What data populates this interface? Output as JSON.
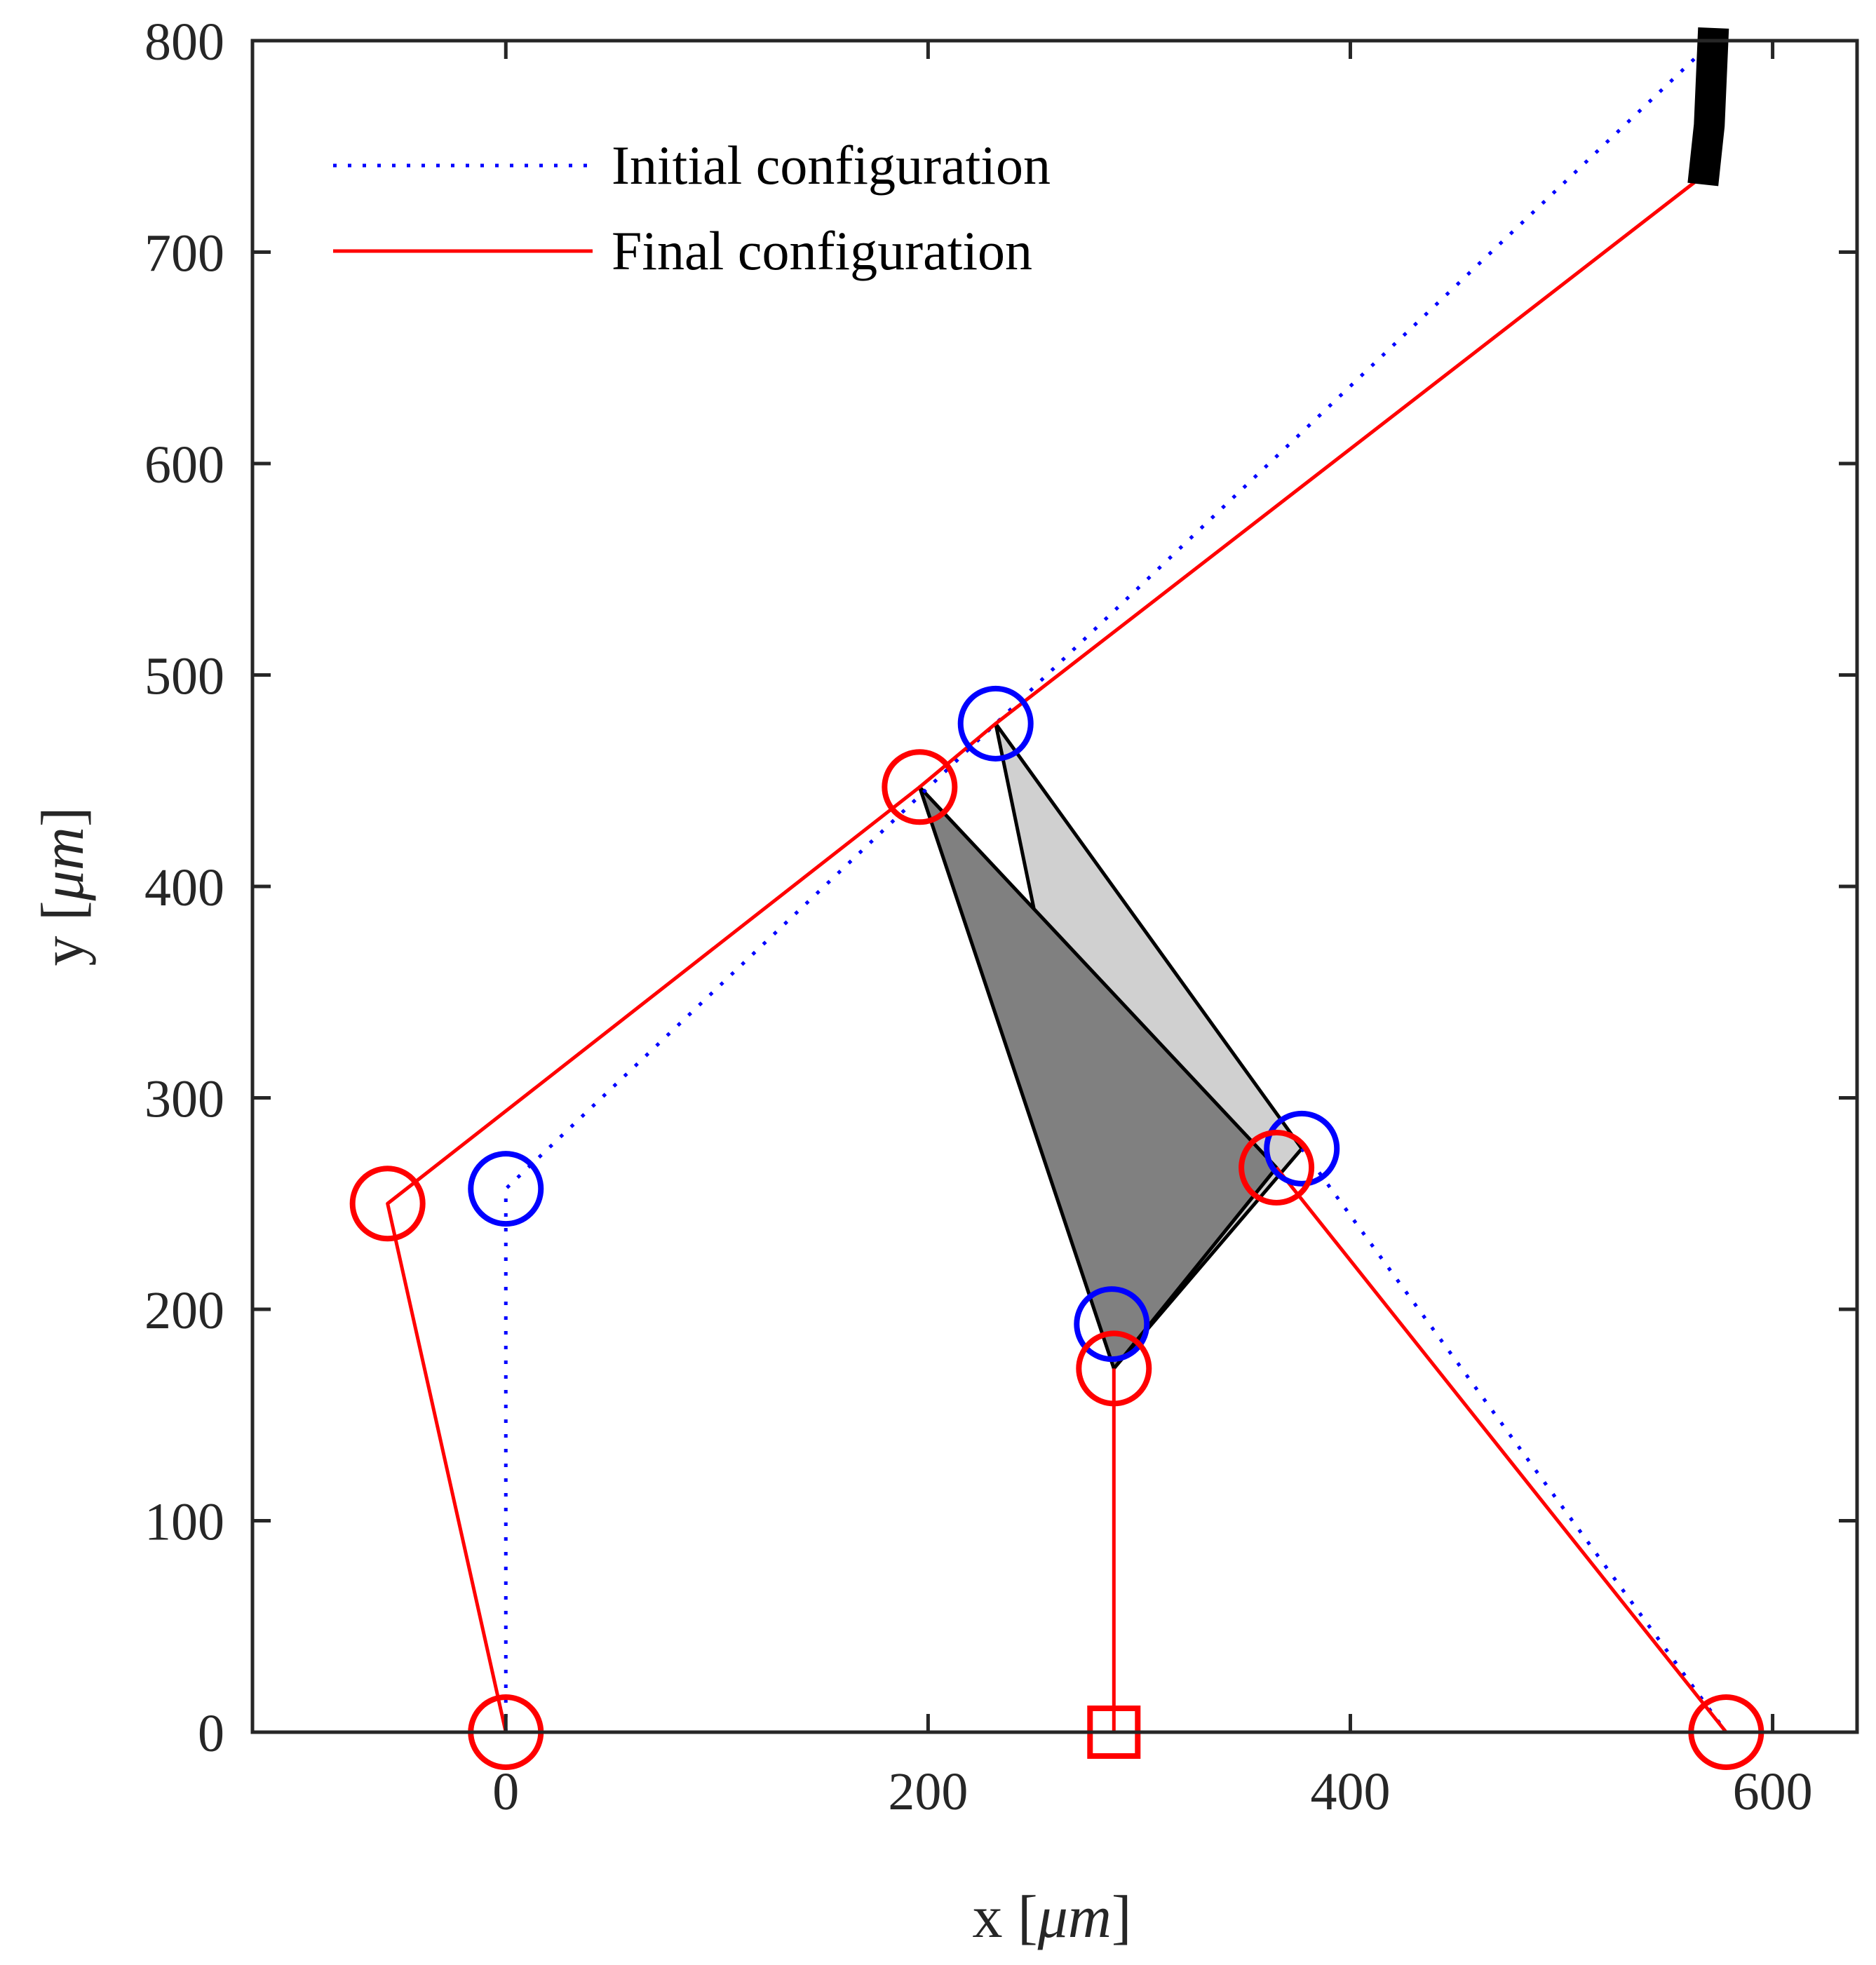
{
  "chart_data": {
    "type": "line",
    "title": "",
    "xlabel": "x [",
    "xlabel_unit": "μm",
    "xlabel_close": "]",
    "ylabel": "y [",
    "ylabel_unit": "μm",
    "ylabel_close": "]",
    "xlim": [
      -120,
      640
    ],
    "ylim": [
      0,
      800
    ],
    "xticks": [
      0,
      200,
      400,
      600
    ],
    "yticks": [
      0,
      100,
      200,
      300,
      400,
      500,
      600,
      700,
      800
    ],
    "xtick_labels": [
      "0",
      "200",
      "400",
      "600"
    ],
    "ytick_labels": [
      "0",
      "100",
      "200",
      "300",
      "400",
      "500",
      "600",
      "700",
      "800"
    ],
    "grid": false,
    "legend": {
      "placement": "top-left",
      "entries": [
        "Initial configuration",
        "Final configuration"
      ]
    },
    "series": [
      {
        "name": "Initial configuration",
        "style": "dotted",
        "color": "#0000ff",
        "paths": [
          [
            [
              0,
              0
            ],
            [
              0,
              257
            ],
            [
              232,
              477
            ],
            [
              572,
              800
            ]
          ],
          [
            [
              377,
              276
            ],
            [
              578,
              0
            ]
          ],
          [
            [
              0,
              0
            ],
            [
              578,
              0
            ]
          ]
        ],
        "markers": [
          [
            0,
            257
          ],
          [
            232,
            477
          ],
          [
            377,
            276
          ],
          [
            287,
            193
          ]
        ]
      },
      {
        "name": "Final configuration",
        "style": "solid",
        "color": "#ff0000",
        "paths": [
          [
            [
              0,
              0
            ],
            [
              -56,
              250
            ],
            [
              196,
              447
            ],
            [
              232,
              477
            ],
            [
              563,
              733
            ]
          ],
          [
            [
              365,
              267
            ],
            [
              578,
              0
            ]
          ],
          [
            [
              0,
              0
            ],
            [
              578,
              0
            ]
          ],
          [
            [
              288,
              0
            ],
            [
              288,
              172
            ]
          ]
        ],
        "markers": [
          [
            -56,
            250
          ],
          [
            196,
            447
          ],
          [
            365,
            267
          ],
          [
            288,
            172
          ],
          [
            0,
            0
          ],
          [
            578,
            0
          ]
        ],
        "square_marker": [
          288,
          0
        ]
      }
    ],
    "polygons": [
      {
        "fill": "#d0d0d0",
        "points": [
          [
            232,
            477
          ],
          [
            377,
            276
          ],
          [
            288,
            172
          ],
          [
            250,
            390
          ]
        ]
      },
      {
        "fill": "#808080",
        "points": [
          [
            196,
            447
          ],
          [
            365,
            267
          ],
          [
            288,
            172
          ]
        ]
      }
    ],
    "annotation_bar": {
      "color": "#000000",
      "points": [
        [
          572,
          806
        ],
        [
          570,
          760
        ],
        [
          567,
          732
        ]
      ]
    }
  }
}
